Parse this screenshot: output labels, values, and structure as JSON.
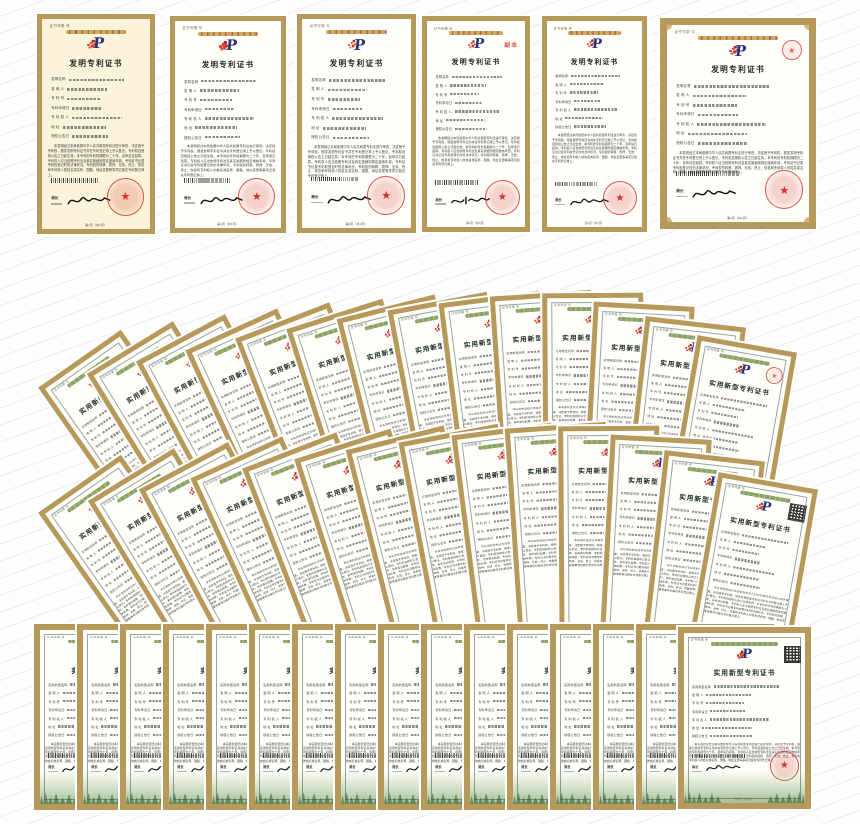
{
  "labels": {
    "invention_title": "发明专利证书",
    "utility_title": "实用新型专利证书",
    "cert_no_invention": "证书号第 号",
    "cert_no_utility": "证书号第 号",
    "issuer": "局长",
    "copy_stamp": "副本",
    "page_footer": "第1页（共1页）",
    "logo_letter": "P",
    "star": "★"
  },
  "fields": {
    "invention": [
      "发明名称",
      "发 明 人",
      "专 利 号",
      "专利申请日",
      "专 利 权 人",
      "地 址",
      "授权公告日"
    ],
    "utility": [
      "实用新型名称",
      "发 明 人",
      "专 利 号",
      "专利申请日",
      "专 利 权 人",
      "地 址",
      "授权公告日"
    ]
  },
  "boilerplate": {
    "invention": "本发明经过本局依照中华人民共和国专利法进行审查，决定授予专利权，颁发发明专利证书并在专利登记簿上予以登记。专利权自授权公告之日起生效。本专利的专利权期限为二十年，自申请日起算。专利权人应当依照专利法及其实施细则规定缴纳年费。专利证书记载专利权登记时的法律状况。专利权的转移、质押、无效、终止、恢复和专利权人的姓名或名称、国籍、地址变更等事项记载在专利登记簿上。",
    "utility": "本实用新型经过本局依照中华人民共和国专利法进行初步审查，决定授予专利权，颁发实用新型专利证书并在专利登记簿上予以登记。专利权自授权公告之日起生效。本专利的专利权期限为十年，自申请日起算。专利权人应当依照专利法及其实施细则规定缴纳年费。专利证书记载专利权登记时的法律状况。专利权的转移、质押、无效、终止、恢复和专利权人的姓名或名称、国籍、地址变更等事项记载在专利登记簿上。"
  },
  "signatures": {
    "default": "申长雨",
    "alternate": "田力普"
  },
  "rows": {
    "top": {
      "type": "invention",
      "items": [
        {
          "paper": "cream",
          "stamp": "none",
          "signature": "申长雨"
        },
        {
          "paper": "white",
          "stamp": "none",
          "signature": "申长雨"
        },
        {
          "paper": "white",
          "stamp": "none",
          "signature": "申长雨"
        },
        {
          "paper": "white",
          "stamp": "copy",
          "signature": "田力普"
        },
        {
          "paper": "white",
          "stamp": "none",
          "signature": "申长雨"
        },
        {
          "paper": "white",
          "stamp": "round",
          "signature": "申长雨",
          "ornate": true
        }
      ]
    },
    "fan_top": {
      "type": "utility",
      "count": 14,
      "front_stamp": "round"
    },
    "fan_bottom": {
      "type": "utility",
      "count": 14,
      "front_stamp": "qr"
    },
    "bottom": {
      "type": "utility",
      "count": 16,
      "front_stamp": "qr"
    }
  },
  "colors": {
    "gold": "#b8995c",
    "seal_red": "#d6392e",
    "logo_blue": "#26357e",
    "paper_cream": "#fbf3da",
    "paper_white": "#fffef9",
    "green": "#6f9c63",
    "background_line": "#ececec"
  }
}
